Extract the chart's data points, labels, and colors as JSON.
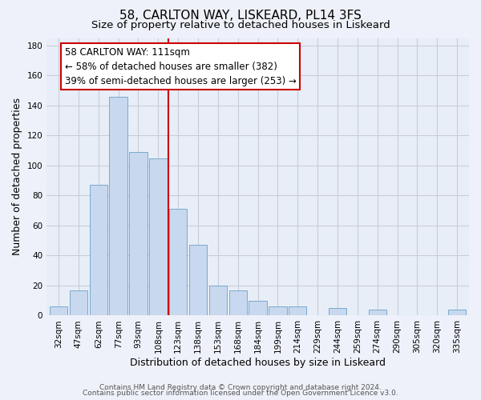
{
  "title": "58, CARLTON WAY, LISKEARD, PL14 3FS",
  "subtitle": "Size of property relative to detached houses in Liskeard",
  "xlabel": "Distribution of detached houses by size in Liskeard",
  "ylabel": "Number of detached properties",
  "bar_labels": [
    "32sqm",
    "47sqm",
    "62sqm",
    "77sqm",
    "93sqm",
    "108sqm",
    "123sqm",
    "138sqm",
    "153sqm",
    "168sqm",
    "184sqm",
    "199sqm",
    "214sqm",
    "229sqm",
    "244sqm",
    "259sqm",
    "274sqm",
    "290sqm",
    "305sqm",
    "320sqm",
    "335sqm"
  ],
  "bar_values": [
    6,
    17,
    87,
    146,
    109,
    105,
    71,
    47,
    20,
    17,
    10,
    6,
    6,
    0,
    5,
    0,
    4,
    0,
    0,
    0,
    4
  ],
  "bar_color": "#c8d8ee",
  "bar_edge_color": "#7aaacc",
  "vline_x": 5.5,
  "vline_color": "#cc0000",
  "annotation_line1": "58 CARLTON WAY: 111sqm",
  "annotation_line2": "← 58% of detached houses are smaller (382)",
  "annotation_line3": "39% of semi-detached houses are larger (253) →",
  "ylim": [
    0,
    185
  ],
  "yticks": [
    0,
    20,
    40,
    60,
    80,
    100,
    120,
    140,
    160,
    180
  ],
  "footer1": "Contains HM Land Registry data © Crown copyright and database right 2024.",
  "footer2": "Contains public sector information licensed under the Open Government Licence v3.0.",
  "background_color": "#eef1f9",
  "plot_bg_color": "#e8eef8",
  "grid_color": "#c8ccd8",
  "title_fontsize": 11,
  "subtitle_fontsize": 9.5,
  "axis_label_fontsize": 9,
  "tick_fontsize": 7.5,
  "footer_fontsize": 6.5,
  "annotation_fontsize": 8.5
}
